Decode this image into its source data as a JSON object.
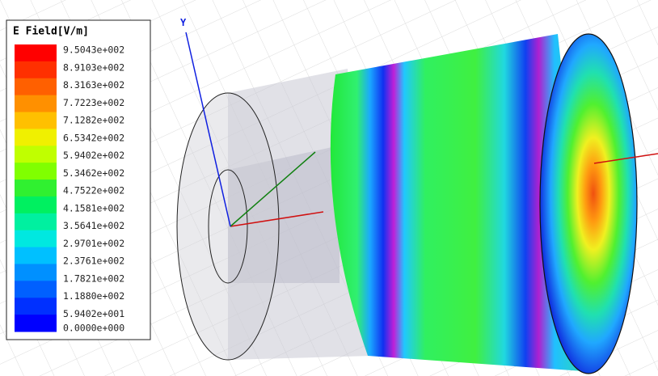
{
  "legend": {
    "title": "E Field[V/m]",
    "labels": [
      "9.5043e+002",
      "8.9103e+002",
      "8.3163e+002",
      "7.7223e+002",
      "7.1282e+002",
      "6.5342e+002",
      "5.9402e+002",
      "5.3462e+002",
      "4.7522e+002",
      "4.1581e+002",
      "3.5641e+002",
      "2.9701e+002",
      "2.3761e+002",
      "1.7821e+002",
      "1.1880e+002",
      "5.9402e+001",
      "0.0000e+000"
    ]
  },
  "axis_label": "Y"
}
